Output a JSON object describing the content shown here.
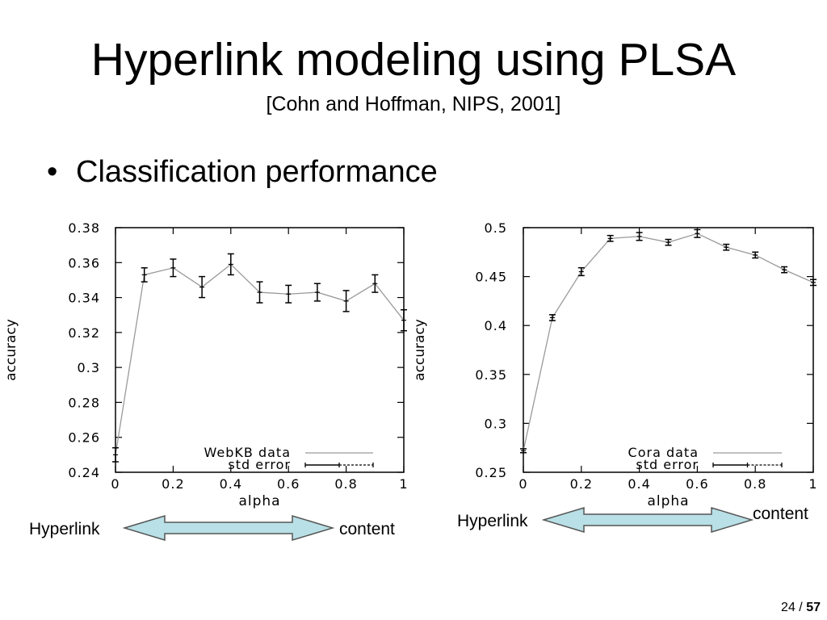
{
  "slide": {
    "title": "Hyperlink modeling using PLSA",
    "subtitle": "[Cohn and Hoffman, NIPS, 2001]",
    "bullet": "Classification performance",
    "page_current": "24",
    "page_sep": "/",
    "page_total": "57"
  },
  "arrows": [
    {
      "left_label": "Hyperlink",
      "right_label": "content",
      "fill": "#b8e0e6",
      "stroke": "#555555"
    },
    {
      "left_label": "Hyperlink",
      "right_label": "content",
      "fill": "#b8e0e6",
      "stroke": "#555555"
    }
  ],
  "chart_data": [
    {
      "type": "line",
      "xlabel": "alpha",
      "ylabel": "accuracy",
      "xlim": [
        0,
        1
      ],
      "ylim": [
        0.24,
        0.38
      ],
      "xticks": [
        "0",
        "0.2",
        "0.4",
        "0.6",
        "0.8",
        "1"
      ],
      "yticks": [
        "0.24",
        "0.26",
        "0.28",
        "0.3",
        "0.32",
        "0.34",
        "0.36",
        "0.38"
      ],
      "grid": false,
      "legend_position": "bottom-right",
      "series": [
        {
          "name": "WebKB data",
          "x": [
            0,
            0.1,
            0.2,
            0.3,
            0.4,
            0.5,
            0.6,
            0.7,
            0.8,
            0.9,
            1.0
          ],
          "y": [
            0.25,
            0.353,
            0.357,
            0.346,
            0.359,
            0.343,
            0.342,
            0.343,
            0.338,
            0.348,
            0.327
          ],
          "err": [
            0.004,
            0.004,
            0.005,
            0.006,
            0.006,
            0.006,
            0.005,
            0.005,
            0.006,
            0.005,
            0.006
          ]
        },
        {
          "name": "std error"
        }
      ]
    },
    {
      "type": "line",
      "xlabel": "alpha",
      "ylabel": "accuracy",
      "xlim": [
        0,
        1
      ],
      "ylim": [
        0.25,
        0.5
      ],
      "xticks": [
        "0",
        "0.2",
        "0.4",
        "0.6",
        "0.8",
        "1"
      ],
      "yticks": [
        "0.25",
        "0.3",
        "0.35",
        "0.4",
        "0.45",
        "0.5"
      ],
      "grid": false,
      "legend_position": "bottom-right",
      "series": [
        {
          "name": "Cora data",
          "x": [
            0,
            0.1,
            0.2,
            0.3,
            0.4,
            0.5,
            0.6,
            0.7,
            0.8,
            0.9,
            1.0
          ],
          "y": [
            0.272,
            0.408,
            0.455,
            0.489,
            0.491,
            0.485,
            0.494,
            0.48,
            0.472,
            0.457,
            0.444
          ],
          "err": [
            0.002,
            0.003,
            0.004,
            0.003,
            0.004,
            0.003,
            0.004,
            0.003,
            0.003,
            0.003,
            0.003
          ]
        },
        {
          "name": "std error"
        }
      ]
    }
  ]
}
